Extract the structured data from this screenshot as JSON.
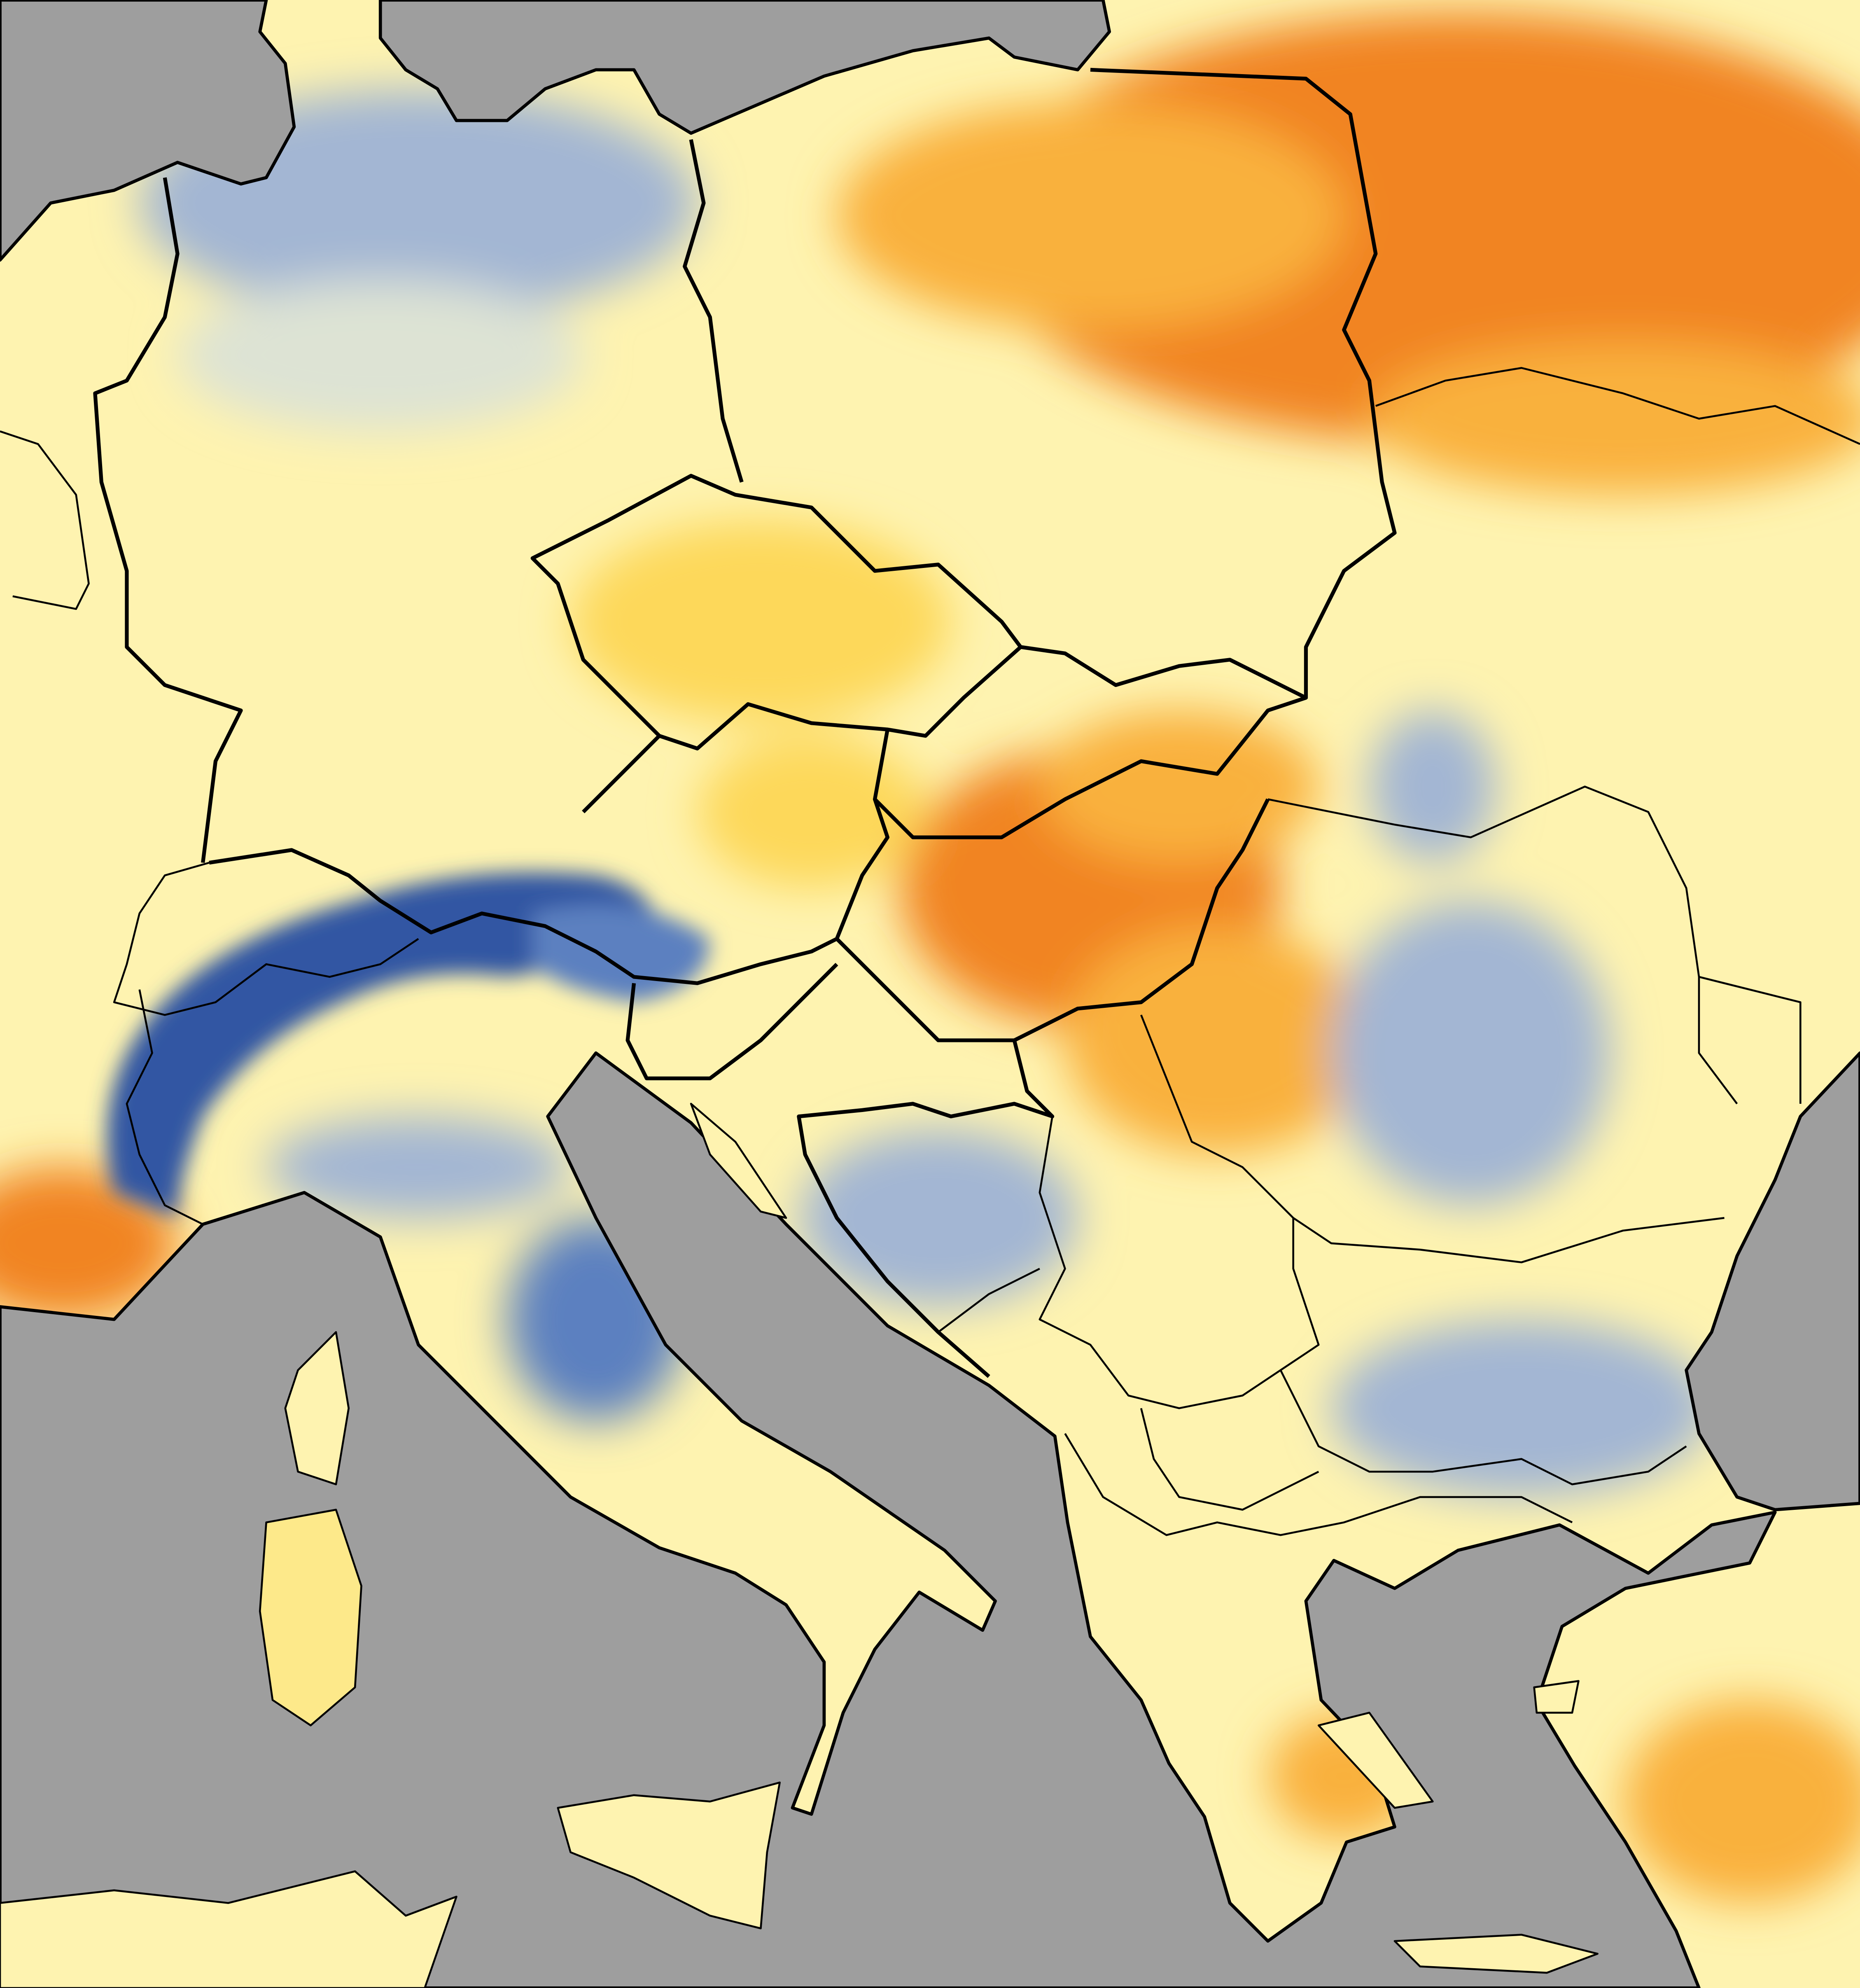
{
  "map": {
    "colors": {
      "sea": "#9e9e9e",
      "land_base": "#fef3b0",
      "very_light": "#fffbd8",
      "light_yellow": "#fee98a",
      "yellow": "#fdd85a",
      "orange_light": "#f9b13e",
      "orange": "#f18422",
      "orange_dark": "#e0601a",
      "blue_pale": "#dde3d4",
      "blue_light": "#a3b6d3",
      "blue_mid": "#5b80c0",
      "blue_dark": "#3156a3",
      "border": "#000000"
    }
  }
}
